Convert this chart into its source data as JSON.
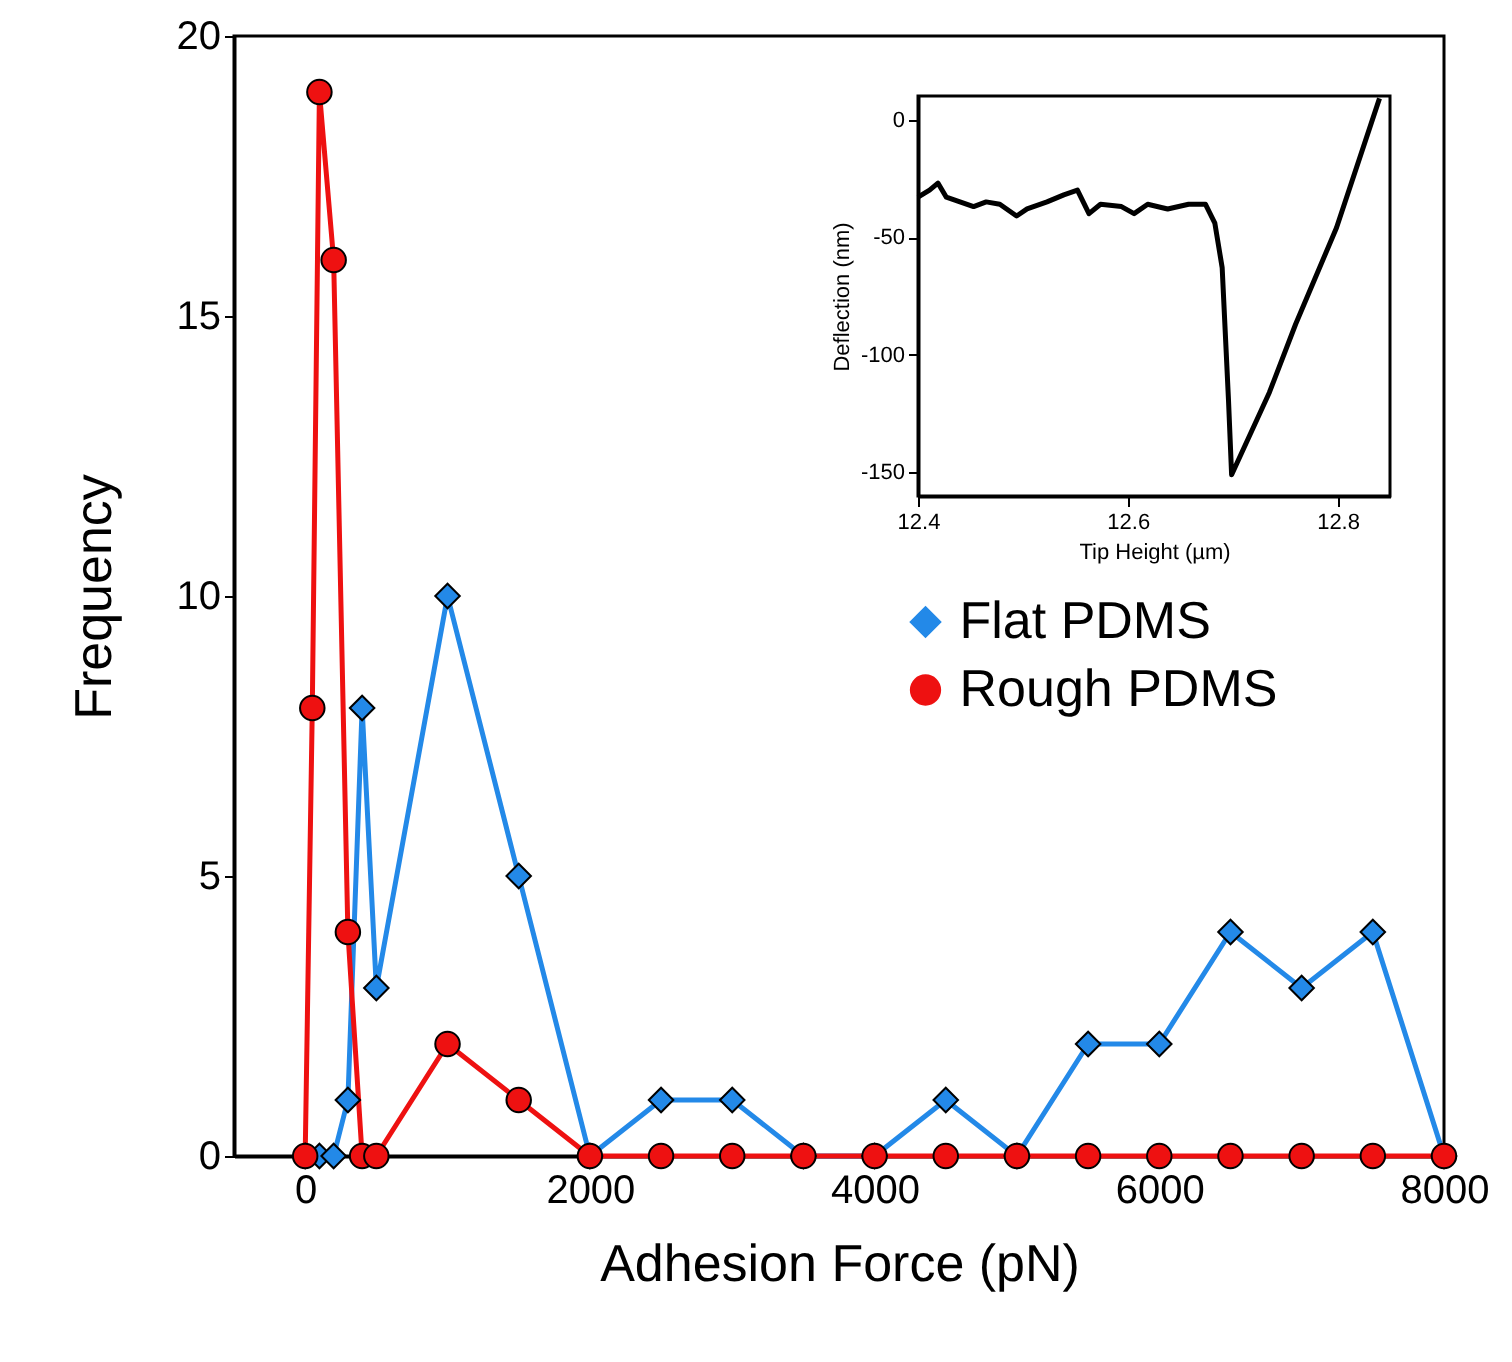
{
  "chart_data": [
    {
      "type": "line",
      "xlabel": "Adhesion Force (pN)",
      "ylabel": "Frequency",
      "xlim": [
        -500,
        8000
      ],
      "xticks": [
        0,
        2000,
        4000,
        6000,
        8000
      ],
      "ylim": [
        0,
        20
      ],
      "yticks": [
        0,
        5,
        10,
        15,
        20
      ],
      "legend": "right",
      "series": [
        {
          "name": "Flat PDMS",
          "color": "#2389e8",
          "marker": "diamond",
          "x": [
            0,
            100,
            200,
            300,
            400,
            500,
            1000,
            1500,
            2000,
            2500,
            3000,
            3500,
            4000,
            4500,
            5000,
            5500,
            6000,
            6500,
            7000,
            7500,
            8000
          ],
          "values": [
            0,
            0,
            0,
            1,
            8,
            3,
            10,
            5,
            0,
            1,
            1,
            0,
            0,
            1,
            0,
            2,
            2,
            4,
            3,
            4,
            0
          ]
        },
        {
          "name": "Rough PDMS",
          "color": "#ee1111",
          "marker": "circle",
          "x": [
            0,
            50,
            100,
            200,
            300,
            400,
            500,
            1000,
            1500,
            2000,
            2500,
            3000,
            3500,
            4000,
            4500,
            5000,
            5500,
            6000,
            6500,
            7000,
            7500,
            8000
          ],
          "values": [
            0,
            8,
            19,
            16,
            4,
            0,
            0,
            2,
            1,
            0,
            0,
            0,
            0,
            0,
            0,
            0,
            0,
            0,
            0,
            0,
            0,
            0
          ]
        }
      ]
    },
    {
      "type": "line",
      "xlabel": "Tip Height (µm)",
      "ylabel": "Deflection (nm)",
      "xlim": [
        12.4,
        12.85
      ],
      "xticks": [
        12.4,
        12.6,
        12.8
      ],
      "ylim": [
        -160,
        10
      ],
      "yticks": [
        -150,
        -100,
        -50,
        0
      ],
      "series": [
        {
          "color": "#000000",
          "x": [
            12.4,
            12.411,
            12.419,
            12.427,
            12.44,
            12.453,
            12.465,
            12.478,
            12.494,
            12.504,
            12.523,
            12.539,
            12.552,
            12.563,
            12.574,
            12.594,
            12.606,
            12.619,
            12.638,
            12.658,
            12.674,
            12.683,
            12.69,
            12.696,
            12.699,
            12.735,
            12.76,
            12.799,
            12.84
          ],
          "values": [
            -33,
            -30,
            -27,
            -33,
            -35,
            -37,
            -35,
            -36,
            -41,
            -38,
            -35,
            -32,
            -30,
            -40,
            -36,
            -37,
            -40,
            -36,
            -38,
            -36,
            -36,
            -44,
            -63,
            -119,
            -151,
            -116,
            -87,
            -46,
            9
          ]
        }
      ]
    }
  ]
}
